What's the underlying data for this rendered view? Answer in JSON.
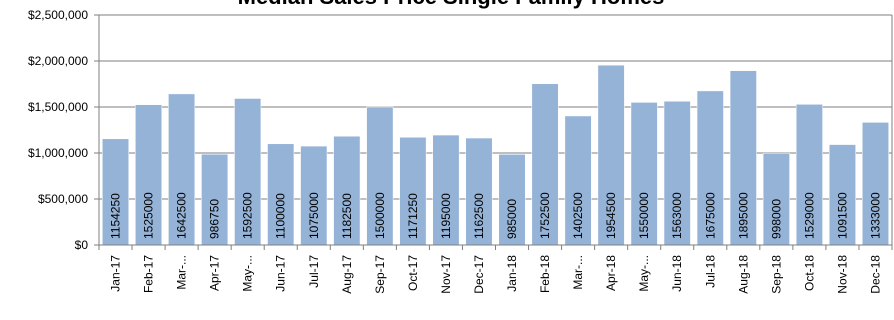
{
  "chart_data": {
    "type": "bar",
    "title": "Median Sales Price Single Family Homes",
    "xlabel": "",
    "ylabel": "",
    "ylim": [
      0,
      2500000
    ],
    "yticks": [
      0,
      500000,
      1000000,
      1500000,
      2000000,
      2500000
    ],
    "ytick_labels": [
      "$0",
      "$500,000",
      "$1,000,000",
      "$1,500,000",
      "$2,000,000",
      "$2,500,000"
    ],
    "grid": true,
    "bar_color": "#95B3D7",
    "categories": [
      "Jan-17",
      "Feb-17",
      "Mar-...",
      "Apr-17",
      "May-...",
      "Jun-17",
      "Jul-17",
      "Aug-17",
      "Sep-17",
      "Oct-17",
      "Nov-17",
      "Dec-17",
      "Jan-18",
      "Feb-18",
      "Mar-...",
      "Apr-18",
      "May-...",
      "Jun-18",
      "Jul-18",
      "Aug-18",
      "Sep-18",
      "Oct-18",
      "Nov-18",
      "Dec-18"
    ],
    "values": [
      1154250,
      1525000,
      1642500,
      986750,
      1592500,
      1100000,
      1075000,
      1182500,
      1500000,
      1171250,
      1195000,
      1162500,
      985000,
      1752500,
      1402500,
      1954500,
      1550000,
      1563000,
      1675000,
      1895000,
      998000,
      1529000,
      1091500,
      1333000
    ],
    "data_labels": [
      "1154250",
      "1525000",
      "1642500",
      "986750",
      "1592500",
      "1100000",
      "1075000",
      "1182500",
      "1500000",
      "1171250",
      "1195000",
      "1162500",
      "985000",
      "1752500",
      "1402500",
      "1954500",
      "1550000",
      "1563000",
      "1675000",
      "1895000",
      "998000",
      "1529000",
      "1091500",
      "1333000"
    ]
  }
}
